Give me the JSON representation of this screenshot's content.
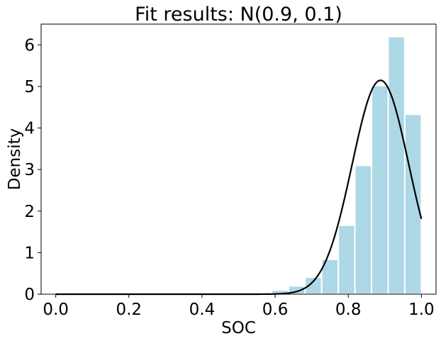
{
  "chart_data": {
    "type": "histogram",
    "title": "Fit results: N(0.9, 0.1)",
    "xlabel": "SOC",
    "ylabel": "Density",
    "xlim": [
      -0.04,
      1.04
    ],
    "ylim": [
      0,
      6.5
    ],
    "x_ticks": [
      "0.0",
      "0.2",
      "0.4",
      "0.6",
      "0.8",
      "1.0"
    ],
    "x_tick_values": [
      0.0,
      0.2,
      0.4,
      0.6,
      0.8,
      1.0
    ],
    "y_ticks": [
      "0",
      "1",
      "2",
      "3",
      "4",
      "5",
      "6"
    ],
    "y_tick_values": [
      0,
      1,
      2,
      3,
      4,
      5,
      6
    ],
    "bin_width": 0.0455,
    "bins": [
      {
        "x": 0.5227,
        "y": 0.01
      },
      {
        "x": 0.5682,
        "y": 0.04
      },
      {
        "x": 0.6136,
        "y": 0.1
      },
      {
        "x": 0.6591,
        "y": 0.2
      },
      {
        "x": 0.7045,
        "y": 0.41
      },
      {
        "x": 0.75,
        "y": 0.84
      },
      {
        "x": 0.7955,
        "y": 1.66
      },
      {
        "x": 0.8409,
        "y": 3.1
      },
      {
        "x": 0.8864,
        "y": 5.02
      },
      {
        "x": 0.9318,
        "y": 6.2
      },
      {
        "x": 0.9773,
        "y": 4.33
      }
    ],
    "fit": {
      "mu": 0.888,
      "sigma": 0.0775,
      "x_range": [
        0.0,
        1.0
      ]
    },
    "colors": {
      "bars": "#add8e6",
      "bar_edge": "#ffffff",
      "fit_line": "#000000",
      "axes": "#000000"
    }
  }
}
